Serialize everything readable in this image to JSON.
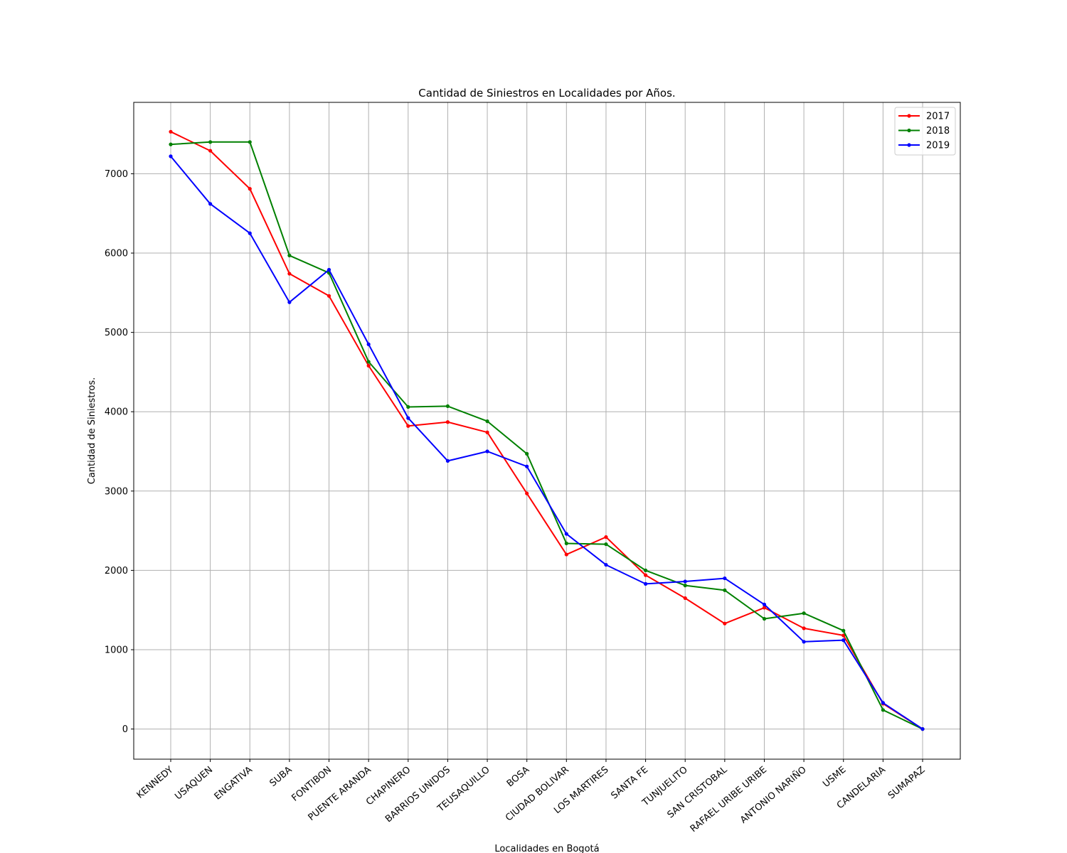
{
  "chart_data": {
    "type": "line",
    "title": "Cantidad de Siniestros en Localidades por Años.",
    "xlabel": "Localidades en Bogotá",
    "ylabel": "Cantidad de Siniestros.",
    "ylim": [
      -380,
      7900
    ],
    "yticks": [
      0,
      1000,
      2000,
      3000,
      4000,
      5000,
      6000,
      7000
    ],
    "grid": true,
    "legend_position": "top-right",
    "categories": [
      "KENNEDY",
      "USAQUEN",
      "ENGATIVA",
      "SUBA",
      "FONTIBON",
      "PUENTE ARANDA",
      "CHAPINERO",
      "BARRIOS UNIDOS",
      "TEUSAQUILLO",
      "BOSA",
      "CIUDAD BOLIVAR",
      "LOS MARTIRES",
      "SANTA FE",
      "TUNJUELITO",
      "SAN CRISTOBAL",
      "RAFAEL URIBE URIBE",
      "ANTONIO NARIÑO",
      "USME",
      "CANDELARIA",
      "SUMAPAZ"
    ],
    "series": [
      {
        "name": "2017",
        "color": "#ff0000",
        "values": [
          7530,
          7290,
          6810,
          5740,
          5460,
          4580,
          3820,
          3870,
          3740,
          2970,
          2200,
          2420,
          1940,
          1650,
          1330,
          1530,
          1270,
          1180,
          320,
          0
        ]
      },
      {
        "name": "2018",
        "color": "#008000",
        "values": [
          7370,
          7400,
          7400,
          5970,
          5750,
          4630,
          4060,
          4070,
          3880,
          3470,
          2340,
          2330,
          2000,
          1810,
          1750,
          1390,
          1460,
          1240,
          240,
          0
        ]
      },
      {
        "name": "2019",
        "color": "#0000ff",
        "values": [
          7220,
          6620,
          6250,
          5380,
          5790,
          4850,
          3920,
          3380,
          3500,
          3310,
          2460,
          2070,
          1830,
          1860,
          1900,
          1570,
          1100,
          1120,
          330,
          0
        ]
      }
    ]
  }
}
